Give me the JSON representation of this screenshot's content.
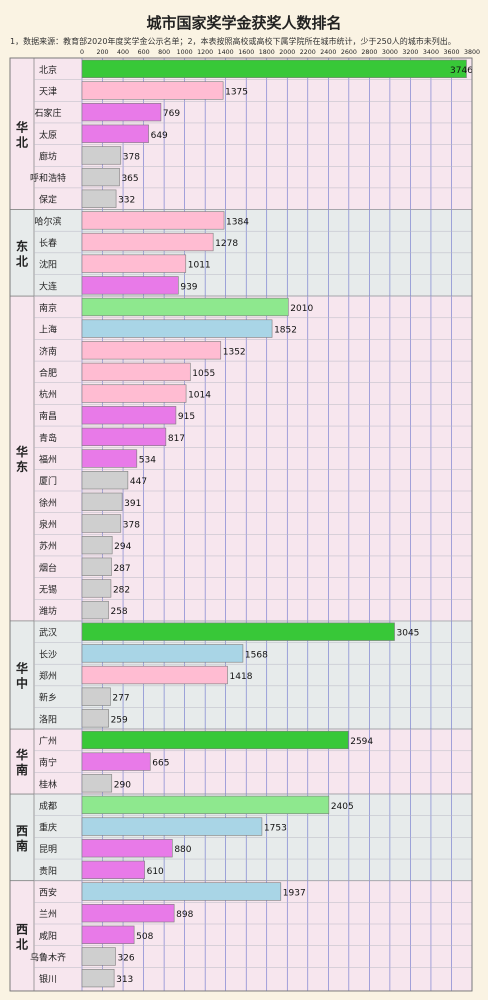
{
  "title": "城市国家奖学金获奖人数排名",
  "note": "1，数据来源：教育部2020年度奖学金公示名单；2，本表按照高校或高校下属学院所在城市统计，少于250人的城市未列出。",
  "colors": {
    "background": "#faf3e3",
    "band_pink": "#f7e6ee",
    "band_grey": "#e7ebeb",
    "grid": "#6a72cc",
    "bar_green": "#38c838",
    "bar_lightgreen": "#8ee88e",
    "bar_blue": "#a9d5e6",
    "bar_pink": "#ffbcd2",
    "bar_violet": "#e87ae8",
    "bar_grey": "#cfcfcf"
  },
  "chart_data": {
    "type": "bar",
    "orientation": "horizontal",
    "title": "城市国家奖学金获奖人数排名",
    "xlim": [
      0,
      3800
    ],
    "xticks": [
      0,
      200,
      400,
      600,
      800,
      1000,
      1200,
      1400,
      1600,
      1800,
      2000,
      2200,
      2400,
      2600,
      2800,
      3000,
      3200,
      3400,
      3600,
      3800
    ],
    "grid": true,
    "legend": "none",
    "groups": [
      {
        "region": "华北",
        "band": "pink",
        "cities": [
          {
            "city": "北京",
            "value": 3746,
            "color": "green"
          },
          {
            "city": "天津",
            "value": 1375,
            "color": "pink"
          },
          {
            "city": "石家庄",
            "value": 769,
            "color": "violet"
          },
          {
            "city": "太原",
            "value": 649,
            "color": "violet"
          },
          {
            "city": "廊坊",
            "value": 378,
            "color": "grey"
          },
          {
            "city": "呼和浩特",
            "value": 365,
            "color": "grey"
          },
          {
            "city": "保定",
            "value": 332,
            "color": "grey"
          }
        ]
      },
      {
        "region": "东北",
        "band": "grey",
        "cities": [
          {
            "city": "哈尔滨",
            "value": 1384,
            "color": "pink"
          },
          {
            "city": "长春",
            "value": 1278,
            "color": "pink"
          },
          {
            "city": "沈阳",
            "value": 1011,
            "color": "pink"
          },
          {
            "city": "大连",
            "value": 939,
            "color": "violet"
          }
        ]
      },
      {
        "region": "华东",
        "band": "pink",
        "cities": [
          {
            "city": "南京",
            "value": 2010,
            "color": "lightgreen"
          },
          {
            "city": "上海",
            "value": 1852,
            "color": "blue"
          },
          {
            "city": "济南",
            "value": 1352,
            "color": "pink"
          },
          {
            "city": "合肥",
            "value": 1055,
            "color": "pink"
          },
          {
            "city": "杭州",
            "value": 1014,
            "color": "pink"
          },
          {
            "city": "南昌",
            "value": 915,
            "color": "violet"
          },
          {
            "city": "青岛",
            "value": 817,
            "color": "violet"
          },
          {
            "city": "福州",
            "value": 534,
            "color": "violet"
          },
          {
            "city": "厦门",
            "value": 447,
            "color": "grey"
          },
          {
            "city": "徐州",
            "value": 391,
            "color": "grey"
          },
          {
            "city": "泉州",
            "value": 378,
            "color": "grey"
          },
          {
            "city": "苏州",
            "value": 294,
            "color": "grey"
          },
          {
            "city": "烟台",
            "value": 287,
            "color": "grey"
          },
          {
            "city": "无锡",
            "value": 282,
            "color": "grey"
          },
          {
            "city": "潍坊",
            "value": 258,
            "color": "grey"
          }
        ]
      },
      {
        "region": "华中",
        "band": "grey",
        "cities": [
          {
            "city": "武汉",
            "value": 3045,
            "color": "green"
          },
          {
            "city": "长沙",
            "value": 1568,
            "color": "blue"
          },
          {
            "city": "郑州",
            "value": 1418,
            "color": "pink"
          },
          {
            "city": "新乡",
            "value": 277,
            "color": "grey"
          },
          {
            "city": "洛阳",
            "value": 259,
            "color": "grey"
          }
        ]
      },
      {
        "region": "华南",
        "band": "pink",
        "cities": [
          {
            "city": "广州",
            "value": 2594,
            "color": "green"
          },
          {
            "city": "南宁",
            "value": 665,
            "color": "violet"
          },
          {
            "city": "桂林",
            "value": 290,
            "color": "grey"
          }
        ]
      },
      {
        "region": "西南",
        "band": "grey",
        "cities": [
          {
            "city": "成都",
            "value": 2405,
            "color": "lightgreen"
          },
          {
            "city": "重庆",
            "value": 1753,
            "color": "blue"
          },
          {
            "city": "昆明",
            "value": 880,
            "color": "violet"
          },
          {
            "city": "贵阳",
            "value": 610,
            "color": "violet"
          }
        ]
      },
      {
        "region": "西北",
        "band": "pink",
        "cities": [
          {
            "city": "西安",
            "value": 1937,
            "color": "blue"
          },
          {
            "city": "兰州",
            "value": 898,
            "color": "violet"
          },
          {
            "city": "咸阳",
            "value": 508,
            "color": "violet"
          },
          {
            "city": "乌鲁木齐",
            "value": 326,
            "color": "grey"
          },
          {
            "city": "银川",
            "value": 313,
            "color": "grey"
          }
        ]
      }
    ]
  }
}
